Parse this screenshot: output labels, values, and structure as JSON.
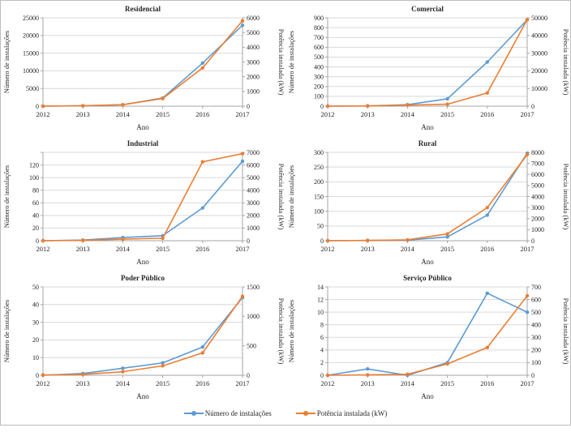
{
  "figure_title": "",
  "colors": {
    "series_installations": "#5B9BD5",
    "series_power": "#ED7D31",
    "gridline": "#D9D9D9",
    "axis_line": "#A6A6A6",
    "text": "#262626",
    "frame_border": "#BDBDBD"
  },
  "legend": {
    "items": [
      {
        "label": "Número de instalações",
        "color": "#5B9BD5"
      },
      {
        "label": "Potência instalada (kW)",
        "color": "#ED7D31"
      }
    ]
  },
  "chart_data": [
    {
      "type": "line",
      "title": "Residencial",
      "x": [
        2012,
        2013,
        2014,
        2015,
        2016,
        2017
      ],
      "xlabel": "Ano",
      "left_axis": {
        "label": "Número de instalações",
        "min": 0,
        "max": 25000,
        "step": 5000,
        "hide_max_label": false
      },
      "right_axis": {
        "label": "Potência instalada (kW)",
        "min": 0,
        "max": 6000,
        "step": 1000
      },
      "series": [
        {
          "name": "Número de instalações",
          "axis": "left",
          "color": "#5B9BD5",
          "values": [
            0,
            100,
            400,
            2300,
            12200,
            22900
          ]
        },
        {
          "name": "Potência instalada (kW)",
          "axis": "right",
          "color": "#ED7D31",
          "values": [
            0,
            30,
            100,
            520,
            2600,
            5800
          ]
        }
      ]
    },
    {
      "type": "line",
      "title": "Comercial",
      "x": [
        2012,
        2013,
        2014,
        2015,
        2016,
        2017
      ],
      "xlabel": "Ano",
      "left_axis": {
        "label": "Número de instalações",
        "min": 0,
        "max": 900,
        "step": 100,
        "hide_max_label": false
      },
      "right_axis": {
        "label": "Potência instalada (kW)",
        "min": 0,
        "max": 50000,
        "step": 10000
      },
      "series": [
        {
          "name": "Número de instalações",
          "axis": "left",
          "color": "#5B9BD5",
          "values": [
            0,
            3,
            15,
            75,
            450,
            880
          ]
        },
        {
          "name": "Potência instalada (kW)",
          "axis": "right",
          "color": "#ED7D31",
          "values": [
            0,
            100,
            600,
            1100,
            7500,
            49000
          ]
        }
      ]
    },
    {
      "type": "line",
      "title": "Industrial",
      "x": [
        2012,
        2013,
        2014,
        2015,
        2016,
        2017
      ],
      "xlabel": "Ano",
      "left_axis": {
        "label": "Número de instalações",
        "min": 0,
        "max": 140,
        "step": 20,
        "hide_max_label": true
      },
      "right_axis": {
        "label": "Potência instalada (kW)",
        "min": 0,
        "max": 7000,
        "step": 1000
      },
      "series": [
        {
          "name": "Número de instalações",
          "axis": "left",
          "color": "#5B9BD5",
          "values": [
            0,
            1,
            5,
            8,
            52,
            126
          ]
        },
        {
          "name": "Potência instalada (kW)",
          "axis": "right",
          "color": "#ED7D31",
          "values": [
            0,
            30,
            120,
            200,
            6250,
            6900
          ]
        }
      ]
    },
    {
      "type": "line",
      "title": "Rural",
      "x": [
        2012,
        2013,
        2014,
        2015,
        2016,
        2017
      ],
      "xlabel": "Ano",
      "left_axis": {
        "label": "Número de instalações",
        "min": 0,
        "max": 300,
        "step": 50,
        "hide_max_label": false
      },
      "right_axis": {
        "label": "Potência instalada (kW)",
        "min": 0,
        "max": 8000,
        "step": 1000
      },
      "series": [
        {
          "name": "Número de instalações",
          "axis": "left",
          "color": "#5B9BD5",
          "values": [
            0,
            1,
            2,
            13,
            87,
            297
          ]
        },
        {
          "name": "Potência instalada (kW)",
          "axis": "right",
          "color": "#ED7D31",
          "values": [
            0,
            20,
            80,
            620,
            3000,
            7800
          ]
        }
      ]
    },
    {
      "type": "line",
      "title": "Poder Público",
      "x": [
        2012,
        2013,
        2014,
        2015,
        2016,
        2017
      ],
      "xlabel": "Ano",
      "left_axis": {
        "label": "Número de instalações",
        "min": 0,
        "max": 50,
        "step": 10,
        "hide_max_label": false
      },
      "right_axis": {
        "label": "Potência instalada (kW)",
        "min": 0,
        "max": 1500,
        "step": 500
      },
      "series": [
        {
          "name": "Número de instalações",
          "axis": "left",
          "color": "#5B9BD5",
          "values": [
            0,
            1,
            4,
            7,
            16,
            44
          ]
        },
        {
          "name": "Potência instalada (kW)",
          "axis": "right",
          "color": "#ED7D31",
          "values": [
            5,
            15,
            60,
            160,
            380,
            1340
          ]
        }
      ]
    },
    {
      "type": "line",
      "title": "Serviço Público",
      "x": [
        2012,
        2013,
        2014,
        2015,
        2016,
        2017
      ],
      "xlabel": "Ano",
      "left_axis": {
        "label": "Número de instalações",
        "min": 0,
        "max": 14,
        "step": 2,
        "hide_max_label": false
      },
      "right_axis": {
        "label": "Potência instalada (kW)",
        "min": 0,
        "max": 700,
        "step": 100
      },
      "series": [
        {
          "name": "Número de instalações",
          "axis": "left",
          "color": "#5B9BD5",
          "values": [
            0,
            1,
            0,
            2,
            13,
            10
          ]
        },
        {
          "name": "Potência instalada (kW)",
          "axis": "right",
          "color": "#ED7D31",
          "values": [
            0,
            3,
            8,
            90,
            220,
            630
          ]
        }
      ]
    }
  ]
}
